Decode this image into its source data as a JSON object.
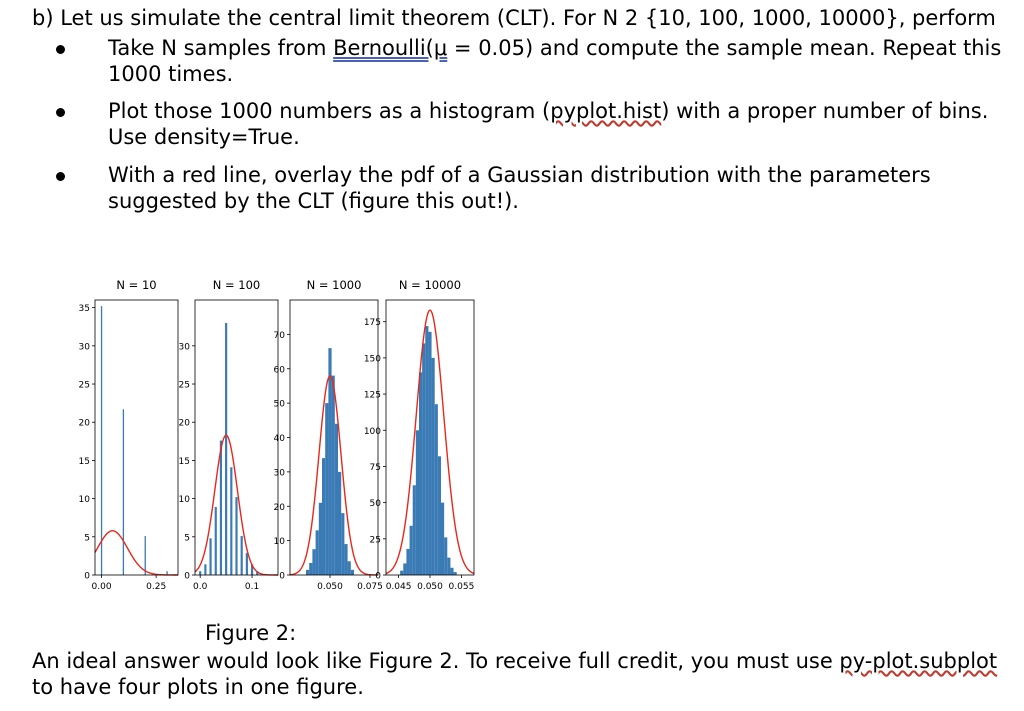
{
  "question": {
    "heading": "b) Let us simulate the central limit theorem (CLT). For N 2 {10, 100, 1000, 10000}, perform",
    "bullets": [
      {
        "pre": "Take N samples from ",
        "link": "Bernoulli(μ",
        "post": " = 0.05) and compute the sample mean. Repeat this 1000 times."
      },
      {
        "pre": "Plot those 1000 numbers as a histogram (",
        "link": "pyplot.hist",
        "post": ") with a proper number of bins. Use density=True."
      },
      {
        "pre": "With a red line, overlay the pdf of a Gaussian distribution with the parameters suggested by the CLT (figure this out!).",
        "link": "",
        "post": ""
      }
    ]
  },
  "figure": {
    "caption": "Figure 2:",
    "answer_pre": "An ideal answer would look like Figure 2. To receive full credit, you must use ",
    "answer_link": "py-plot.subplot",
    "answer_post": " to have four plots in one figure."
  },
  "chart_data": [
    {
      "type": "bar",
      "title": "N =  10",
      "xlim": [
        -0.03,
        0.35
      ],
      "ylim": [
        0,
        36
      ],
      "yticks": [
        0,
        5,
        10,
        15,
        20,
        25,
        30,
        35
      ],
      "ytick_labels": [
        "0",
        "5",
        "10",
        "15",
        "20",
        "25",
        "30",
        "35"
      ],
      "xticks": [
        0.0,
        0.25
      ],
      "xtick_labels": [
        "0.00",
        "0.25"
      ],
      "bars": [
        {
          "x": 0.0,
          "h": 35.2
        },
        {
          "x": 0.1,
          "h": 21.7
        },
        {
          "x": 0.2,
          "h": 5.1
        },
        {
          "x": 0.3,
          "h": 0.5
        }
      ],
      "bar_width": 0.006,
      "gaussian": {
        "mu": 0.05,
        "sigma": 0.0689,
        "color": "#e8281b"
      },
      "bar_color": "#3a7ab5"
    },
    {
      "type": "bar",
      "title": "N =  100",
      "xlim": [
        -0.01,
        0.15
      ],
      "ylim": [
        0,
        36
      ],
      "yticks": [
        0,
        5,
        10,
        15,
        20,
        25,
        30
      ],
      "ytick_labels": [
        "0",
        "5",
        "10",
        "15",
        "20",
        "25",
        "30"
      ],
      "xticks": [
        0.0,
        0.1
      ],
      "xtick_labels": [
        "0.0",
        "0.1"
      ],
      "bars": [
        {
          "x": 0.0,
          "h": 0.5
        },
        {
          "x": 0.01,
          "h": 1.4
        },
        {
          "x": 0.02,
          "h": 4.8
        },
        {
          "x": 0.03,
          "h": 8.9
        },
        {
          "x": 0.04,
          "h": 17.6
        },
        {
          "x": 0.05,
          "h": 33.0
        },
        {
          "x": 0.06,
          "h": 14.1
        },
        {
          "x": 0.07,
          "h": 10.2
        },
        {
          "x": 0.08,
          "h": 5.1
        },
        {
          "x": 0.09,
          "h": 2.9
        },
        {
          "x": 0.1,
          "h": 1.4
        },
        {
          "x": 0.11,
          "h": 0.5
        }
      ],
      "bar_width": 0.0042,
      "gaussian": {
        "mu": 0.05,
        "sigma": 0.0218,
        "color": "#e8281b"
      },
      "bar_color": "#3a7ab5"
    },
    {
      "type": "bar",
      "title": "N =  1000",
      "xlim": [
        0.025,
        0.08
      ],
      "ylim": [
        0,
        80
      ],
      "yticks": [
        0,
        10,
        20,
        30,
        40,
        50,
        60,
        70
      ],
      "ytick_labels": [
        "0",
        "10",
        "20",
        "30",
        "40",
        "50",
        "60",
        "70"
      ],
      "xticks": [
        0.05,
        0.075
      ],
      "xtick_labels": [
        "0.050",
        "0.075"
      ],
      "bars": [
        {
          "x": 0.036,
          "h": 1.5
        },
        {
          "x": 0.038,
          "h": 3.5
        },
        {
          "x": 0.04,
          "h": 7.5
        },
        {
          "x": 0.042,
          "h": 13
        },
        {
          "x": 0.044,
          "h": 21
        },
        {
          "x": 0.046,
          "h": 34
        },
        {
          "x": 0.048,
          "h": 50
        },
        {
          "x": 0.05,
          "h": 66
        },
        {
          "x": 0.052,
          "h": 58
        },
        {
          "x": 0.054,
          "h": 44
        },
        {
          "x": 0.056,
          "h": 30
        },
        {
          "x": 0.058,
          "h": 18
        },
        {
          "x": 0.06,
          "h": 9
        },
        {
          "x": 0.062,
          "h": 4
        },
        {
          "x": 0.064,
          "h": 1.5
        }
      ],
      "bar_width": 0.002,
      "gaussian": {
        "mu": 0.05,
        "sigma": 0.00689,
        "color": "#e8281b"
      },
      "bar_color": "#3a7ab5"
    },
    {
      "type": "bar",
      "title": "N = 10000",
      "xlim": [
        0.043,
        0.057
      ],
      "ylim": [
        0,
        190
      ],
      "yticks": [
        0,
        25,
        50,
        75,
        100,
        125,
        150,
        175
      ],
      "ytick_labels": [
        "0",
        "25",
        "50",
        "75",
        "100",
        "125",
        "150",
        "175"
      ],
      "xticks": [
        0.045,
        0.05,
        0.055
      ],
      "xtick_labels": [
        "0.045",
        "0.050",
        "0.055"
      ],
      "bars": [
        {
          "x": 0.0455,
          "h": 3
        },
        {
          "x": 0.046,
          "h": 8
        },
        {
          "x": 0.0465,
          "h": 18
        },
        {
          "x": 0.047,
          "h": 34
        },
        {
          "x": 0.0475,
          "h": 62
        },
        {
          "x": 0.048,
          "h": 100
        },
        {
          "x": 0.0485,
          "h": 140
        },
        {
          "x": 0.049,
          "h": 160
        },
        {
          "x": 0.0495,
          "h": 172
        },
        {
          "x": 0.05,
          "h": 168
        },
        {
          "x": 0.0505,
          "h": 150
        },
        {
          "x": 0.051,
          "h": 118
        },
        {
          "x": 0.0515,
          "h": 82
        },
        {
          "x": 0.052,
          "h": 50
        },
        {
          "x": 0.0525,
          "h": 26
        },
        {
          "x": 0.053,
          "h": 12
        },
        {
          "x": 0.0535,
          "h": 5
        },
        {
          "x": 0.054,
          "h": 2
        }
      ],
      "bar_width": 0.0005,
      "gaussian": {
        "mu": 0.05,
        "sigma": 0.00218,
        "color": "#e8281b"
      },
      "bar_color": "#3a7ab5"
    }
  ]
}
